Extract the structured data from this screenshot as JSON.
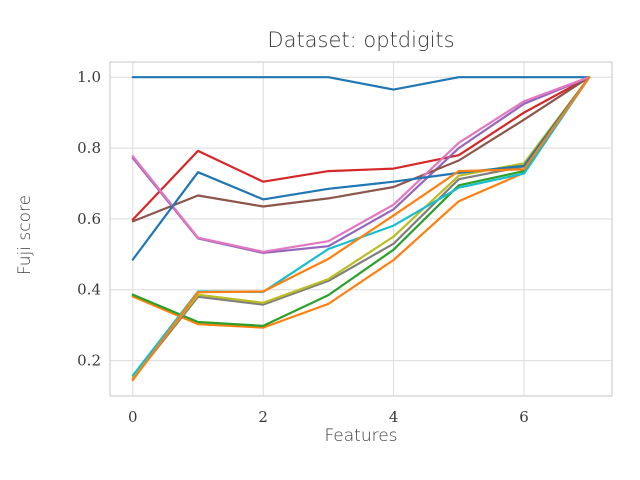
{
  "title": "Dataset: optdigits",
  "chart_data": {
    "type": "line",
    "title": "Dataset: optdigits",
    "xlabel": "Features",
    "ylabel": "Fuji score",
    "x": [
      0,
      1,
      2,
      3,
      4,
      5,
      6,
      7
    ],
    "xlim": [
      -0.35,
      7.35
    ],
    "ylim": [
      0.1,
      1.043
    ],
    "grid": true,
    "legend_position": "none",
    "xticks": [
      0,
      2,
      4,
      6
    ],
    "xtick_labels": [
      "0",
      "2",
      "4",
      "6"
    ],
    "yticks": [
      0.2,
      0.4,
      0.6,
      0.8,
      1.0
    ],
    "ytick_labels": [
      "0.2",
      "0.4",
      "0.6",
      "0.8",
      "1.0"
    ],
    "series": [
      {
        "name": "blue-a",
        "color": "#1f77b4",
        "values": [
          1.0,
          1.0,
          1.0,
          1.0,
          0.965,
          1.0,
          1.0,
          1.0
        ]
      },
      {
        "name": "orange-a",
        "color": "#ff7f0e",
        "values": [
          0.381,
          0.303,
          0.293,
          0.36,
          0.484,
          0.65,
          0.73,
          1.0
        ]
      },
      {
        "name": "green",
        "color": "#2ca02c",
        "values": [
          0.386,
          0.309,
          0.298,
          0.385,
          0.513,
          0.695,
          0.735,
          1.0
        ]
      },
      {
        "name": "red",
        "color": "#d62728",
        "values": [
          0.598,
          0.792,
          0.705,
          0.735,
          0.742,
          0.78,
          0.9,
          1.0
        ]
      },
      {
        "name": "purple",
        "color": "#9467bd",
        "values": [
          0.772,
          0.545,
          0.504,
          0.523,
          0.627,
          0.8,
          0.925,
          1.0
        ]
      },
      {
        "name": "brown",
        "color": "#8c564b",
        "values": [
          0.593,
          0.666,
          0.635,
          0.658,
          0.69,
          0.765,
          0.88,
          1.0
        ]
      },
      {
        "name": "pink",
        "color": "#e377c2",
        "values": [
          0.777,
          0.547,
          0.507,
          0.537,
          0.64,
          0.815,
          0.932,
          1.0
        ]
      },
      {
        "name": "gray",
        "color": "#7f7f7f",
        "values": [
          0.148,
          0.38,
          0.358,
          0.425,
          0.53,
          0.712,
          0.748,
          1.0
        ]
      },
      {
        "name": "olive",
        "color": "#bcbd22",
        "values": [
          0.152,
          0.386,
          0.363,
          0.43,
          0.55,
          0.722,
          0.757,
          1.0
        ]
      },
      {
        "name": "cyan",
        "color": "#17becf",
        "values": [
          0.158,
          0.395,
          0.394,
          0.515,
          0.581,
          0.688,
          0.728,
          1.0
        ]
      },
      {
        "name": "blue-b",
        "color": "#1f77b4",
        "values": [
          0.485,
          0.732,
          0.655,
          0.685,
          0.705,
          0.73,
          0.75,
          1.0
        ]
      },
      {
        "name": "orange-b",
        "color": "#ff7f0e",
        "values": [
          0.145,
          0.393,
          0.395,
          0.487,
          0.61,
          0.735,
          0.74,
          1.0
        ]
      }
    ],
    "style": {
      "background": "#ffffff",
      "grid_color": "#dcdcdc",
      "spine_color": "#cfcfcf",
      "text_color": "#3a3a3a"
    }
  }
}
